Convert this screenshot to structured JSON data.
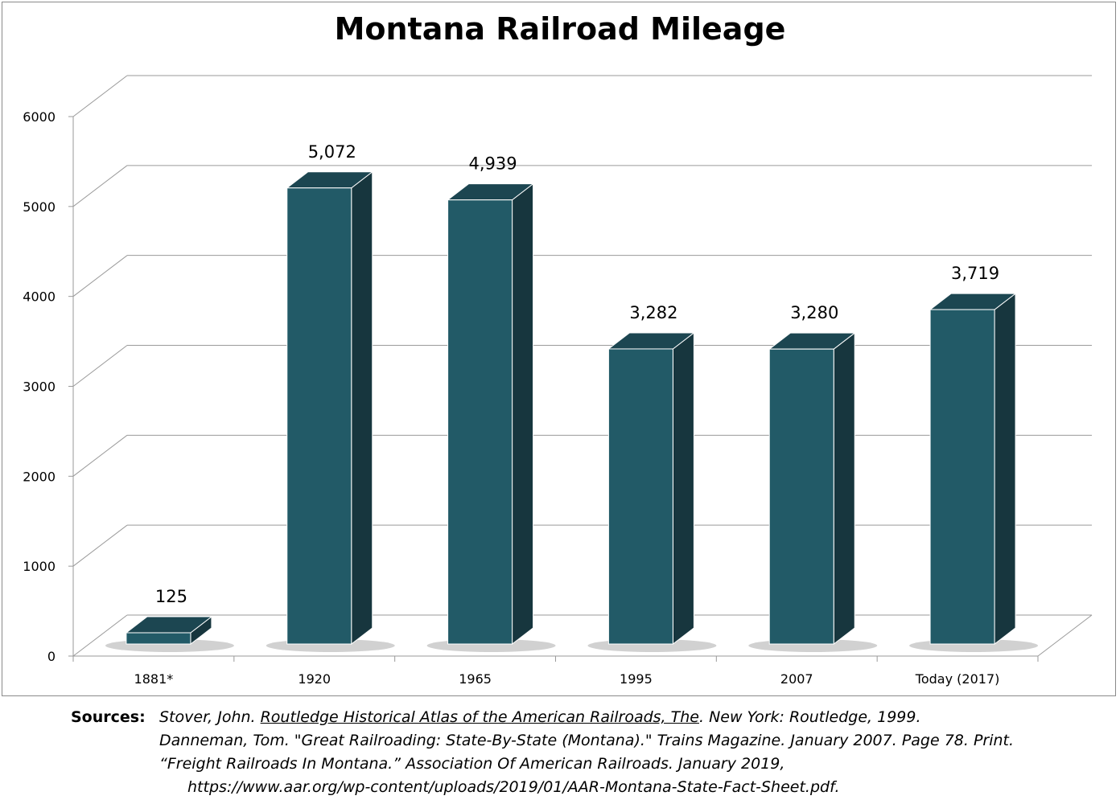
{
  "chart_data": {
    "type": "bar",
    "title": "Montana Railroad Mileage",
    "categories": [
      "1881*",
      "1920",
      "1965",
      "1995",
      "2007",
      "Today  (2017)"
    ],
    "values": [
      125,
      5072,
      4939,
      3282,
      3280,
      3719
    ],
    "data_labels": [
      "125",
      "5,072",
      "4,939",
      "3,282",
      "3,280",
      "3,719"
    ],
    "yticks": [
      "0",
      "1000",
      "2000",
      "3000",
      "4000",
      "5000",
      "6000"
    ],
    "ylim": [
      0,
      6000
    ],
    "grid": true,
    "style": "3d-column",
    "colors": {
      "bar_front": "#225a67",
      "bar_side": "#17363e",
      "bar_top": "#1c4651",
      "gridline": "#9a9a9a"
    }
  },
  "sources": {
    "label": "Sources:",
    "line1_author": "Stover, John. ",
    "line1_title": "Routledge Historical Atlas of the American Railroads, The",
    "line1_rest": ". New York: Routledge, 1999.",
    "line2": "Danneman, Tom. \"Great Railroading: State-By-State (Montana).\" Trains Magazine. January 2007. Page 78. Print.",
    "line3": "“Freight Railroads In Montana.” Association Of American Railroads. January 2019,",
    "line4": "https://www.aar.org/wp-content/uploads/2019/01/AAR-Montana-State-Fact-Sheet.pdf."
  }
}
